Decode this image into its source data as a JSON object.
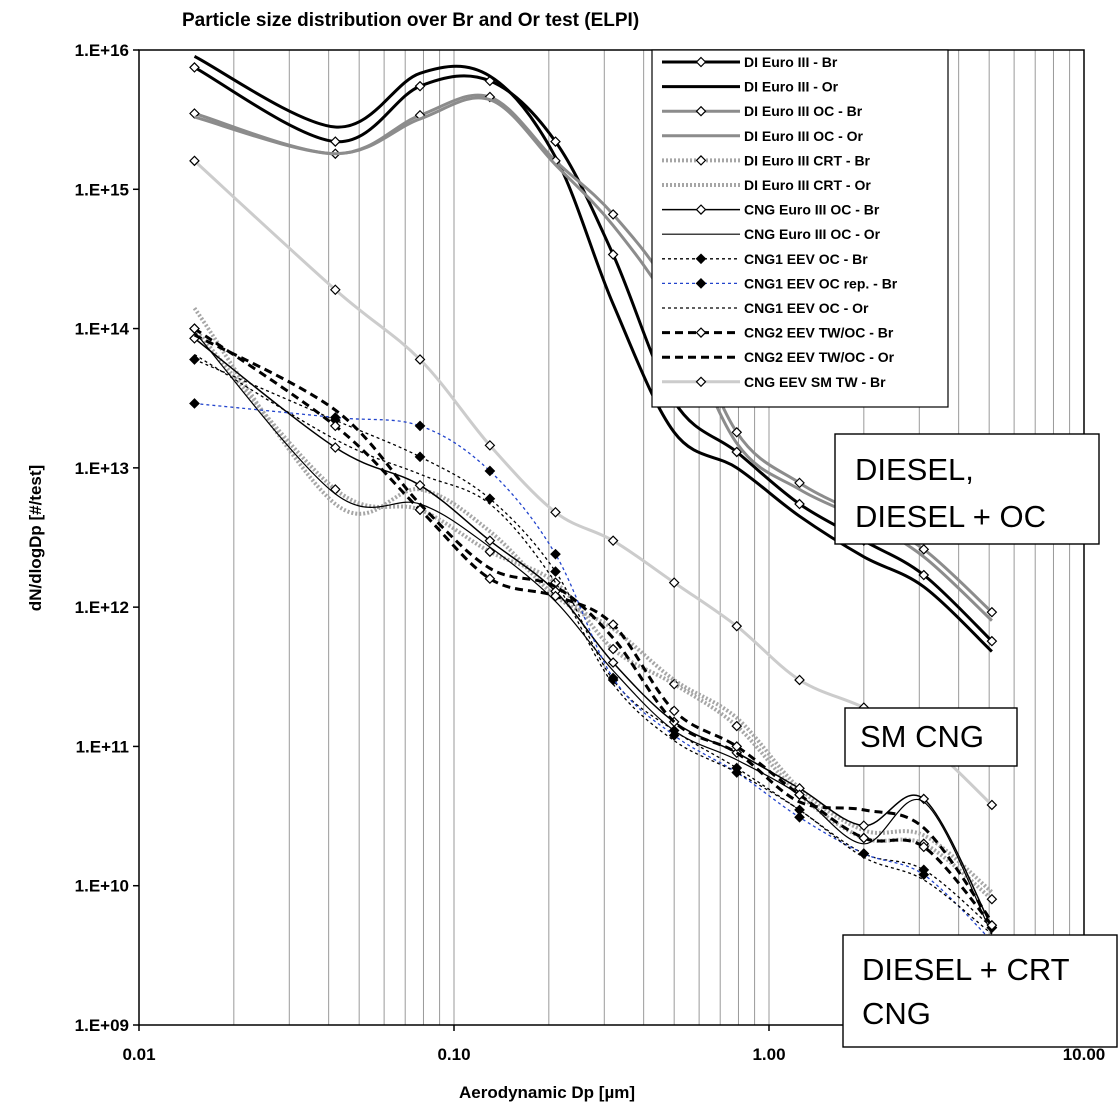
{
  "chart_data": {
    "type": "line",
    "title": "Particle size distribution over Br and Or test (ELPI)",
    "xlabel": "Aerodynamic Dp [µm]",
    "ylabel": "dN/dlogDp [#/test]",
    "x_scale": "log",
    "y_scale": "log",
    "xlim": [
      0.01,
      10
    ],
    "ylim": [
      1000000000.0,
      1e+16
    ],
    "x_tick_labels": [
      "0.01",
      "0.10",
      "1.00",
      "10.00"
    ],
    "y_tick_labels": [
      "1.E+09",
      "1.E+10",
      "1.E+11",
      "1.E+12",
      "1.E+13",
      "1.E+14",
      "1.E+15",
      "1.E+16"
    ],
    "grid": "vertical",
    "legend_position": "top-right",
    "x": [
      0.015,
      0.042,
      0.078,
      0.13,
      0.21,
      0.32,
      0.5,
      0.79,
      1.25,
      2.0,
      3.1,
      5.1
    ],
    "series": [
      {
        "name": "DI Euro III - Br",
        "color": "#000000",
        "width": 3,
        "dash": "",
        "marker": "diamond-open",
        "values": [
          7500000000000000.0,
          2200000000000000.0,
          5500000000000000.0,
          6000000000000000.0,
          2200000000000000.0,
          340000000000000.0,
          30000000000000.0,
          13000000000000.0,
          5500000000000.0,
          3000000000000.0,
          1700000000000.0,
          570000000000.0
        ]
      },
      {
        "name": "DI Euro III - Or",
        "color": "#000000",
        "width": 3,
        "dash": "",
        "marker": "none",
        "values": [
          9000000000000000.0,
          2800000000000000.0,
          6800000000000000.0,
          6500000000000000.0,
          1700000000000000.0,
          150000000000000.0,
          18000000000000.0,
          10000000000000.0,
          4500000000000.0,
          2300000000000.0,
          1400000000000.0,
          480000000000.0
        ]
      },
      {
        "name": "DI Euro III OC - Br",
        "color": "#8c8c8c",
        "width": 3,
        "dash": "",
        "marker": "diamond-open",
        "values": [
          3500000000000000.0,
          1800000000000000.0,
          3400000000000000.0,
          4600000000000000.0,
          1600000000000000.0,
          660000000000000.0,
          170000000000000.0,
          18000000000000.0,
          7800000000000.0,
          4500000000000.0,
          2600000000000.0,
          920000000000.0
        ]
      },
      {
        "name": "DI Euro III OC - Or",
        "color": "#8c8c8c",
        "width": 3,
        "dash": "",
        "marker": "none",
        "values": [
          3300000000000000.0,
          1800000000000000.0,
          3200000000000000.0,
          4400000000000000.0,
          1500000000000000.0,
          550000000000000.0,
          130000000000000.0,
          15000000000000.0,
          7000000000000.0,
          4200000000000.0,
          2300000000000.0,
          800000000000.0
        ]
      },
      {
        "name": "DI Euro III CRT - Br",
        "color": "#a6a6a6",
        "width": 4,
        "dash": "2 2",
        "marker": "diamond-open",
        "values": [
          100000000000000.0,
          7000000000000.0,
          5000000000000.0,
          2500000000000.0,
          1500000000000.0,
          500000000000.0,
          280000000000.0,
          140000000000.0,
          45000000000.0,
          22000000000.0,
          20000000000.0,
          8000000000.0
        ]
      },
      {
        "name": "DI Euro III CRT - Or",
        "color": "#a6a6a6",
        "width": 4,
        "dash": "2 2",
        "marker": "none",
        "values": [
          140000000000000.0,
          5500000000000.0,
          7000000000000.0,
          3500000000000.0,
          1200000000000.0,
          700000000000.0,
          300000000000.0,
          160000000000.0,
          50000000000.0,
          25000000000.0,
          23000000000.0,
          9000000000.0
        ]
      },
      {
        "name": "CNG Euro III OC - Br",
        "color": "#000000",
        "width": 1.5,
        "dash": "",
        "marker": "diamond-open",
        "values": [
          85000000000000.0,
          14000000000000.0,
          7500000000000.0,
          3000000000000.0,
          1300000000000.0,
          400000000000.0,
          150000000000.0,
          90000000000.0,
          50000000000.0,
          27000000000.0,
          42000000000.0,
          5000000000.0
        ]
      },
      {
        "name": "CNG Euro III OC - Or",
        "color": "#000000",
        "width": 1.2,
        "dash": "",
        "marker": "none",
        "values": [
          95000000000000.0,
          6500000000000.0,
          5500000000000.0,
          2700000000000.0,
          1100000000000.0,
          350000000000.0,
          130000000000.0,
          80000000000.0,
          45000000000.0,
          20000000000.0,
          40000000000.0,
          4500000000.0
        ]
      },
      {
        "name": "CNG1 EEV OC - Br",
        "color": "#000000",
        "width": 1.3,
        "dash": "3 3",
        "marker": "diamond-filled",
        "values": [
          60000000000000.0,
          22000000000000.0,
          12000000000000.0,
          6000000000000.0,
          1800000000000.0,
          300000000000.0,
          130000000000.0,
          70000000000.0,
          35000000000.0,
          17000000000.0,
          13000000000.0,
          5000000000.0
        ]
      },
      {
        "name": "CNG1 EEV OC rep. - Br",
        "color": "#2244cc",
        "width": 1.3,
        "dash": "3 3",
        "marker": "diamond-filled",
        "values": [
          29000000000000.0,
          23000000000000.0,
          20000000000000.0,
          9500000000000.0,
          2400000000000.0,
          310000000000.0,
          120000000000.0,
          65000000000.0,
          31000000000.0,
          17000000000.0,
          12000000000.0,
          4000000000.0
        ]
      },
      {
        "name": "CNG1 EEV OC - Or",
        "color": "#000000",
        "width": 1.3,
        "dash": "3 3",
        "marker": "none",
        "values": [
          65000000000000.0,
          16000000000000.0,
          9000000000000.0,
          5500000000000.0,
          1500000000000.0,
          280000000000.0,
          110000000000.0,
          65000000000.0,
          35000000000.0,
          16000000000.0,
          11000000000.0,
          4500000000.0
        ]
      },
      {
        "name": "CNG2 EEV TW/OC - Br",
        "color": "#000000",
        "width": 3,
        "dash": "8 5",
        "marker": "diamond-open",
        "values": [
          100000000000000.0,
          20000000000000.0,
          5000000000000.0,
          1600000000000.0,
          1200000000000.0,
          750000000000.0,
          180000000000.0,
          100000000000.0,
          45000000000.0,
          22000000000.0,
          19000000000.0,
          5200000000.0
        ]
      },
      {
        "name": "CNG2 EEV TW/OC - Or",
        "color": "#000000",
        "width": 3,
        "dash": "8 5",
        "marker": "none",
        "values": [
          90000000000000.0,
          26000000000000.0,
          5500000000000.0,
          1900000000000.0,
          1400000000000.0,
          600000000000.0,
          150000000000.0,
          90000000000.0,
          40000000000.0,
          35000000000.0,
          26000000000.0,
          5500000000.0
        ]
      },
      {
        "name": "CNG EEV SM TW - Br",
        "color": "#cccccc",
        "width": 3,
        "dash": "",
        "marker": "diamond-open",
        "values": [
          1600000000000000.0,
          190000000000000.0,
          60000000000000.0,
          14500000000000.0,
          4800000000000.0,
          3000000000000.0,
          1500000000000.0,
          730000000000.0,
          300000000000.0,
          190000000000.0,
          110000000000.0,
          38000000000.0
        ]
      }
    ],
    "annotations": [
      "DIESEL,\nDIESEL + OC",
      "SM CNG",
      "DIESEL + CRT\nCNG"
    ]
  }
}
